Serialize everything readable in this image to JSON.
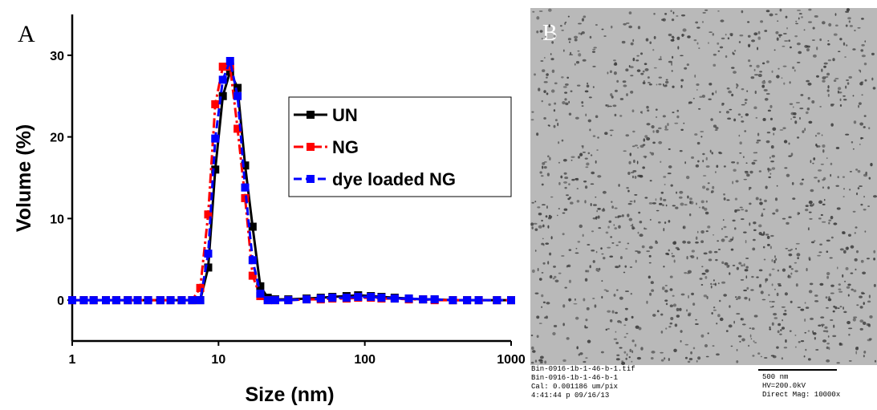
{
  "chart_data": {
    "type": "line",
    "panel_label": "A",
    "x_label": "Size (nm)",
    "y_label": "Volume (%)",
    "x": [
      1,
      1.2,
      1.4,
      1.7,
      2,
      2.4,
      2.8,
      3.3,
      4,
      4.7,
      5.6,
      6.6,
      7.5,
      8.5,
      9.5,
      10.7,
      12,
      13.5,
      15.2,
      17.1,
      19.3,
      21.7,
      24.4,
      30,
      40,
      50,
      60,
      75,
      90,
      110,
      130,
      160,
      200,
      250,
      300,
      400,
      500,
      600,
      800,
      1000
    ],
    "series": [
      {
        "name": "UN",
        "color": "#000000",
        "dash": "none",
        "values": [
          0,
          0,
          0,
          0,
          0,
          0,
          0,
          0,
          0,
          0,
          0,
          0,
          0,
          4,
          16,
          25,
          28,
          26,
          16.5,
          9,
          1.7,
          0.3,
          0.1,
          0.1,
          0.2,
          0.3,
          0.4,
          0.5,
          0.6,
          0.5,
          0.4,
          0.3,
          0.2,
          0.1,
          0.1,
          0,
          0,
          0,
          0,
          0
        ]
      },
      {
        "name": "NG",
        "color": "#ff0000",
        "dash": "12 4 3 4",
        "values": [
          0,
          0,
          0,
          0,
          0,
          0,
          0,
          0,
          0,
          0,
          0,
          0,
          1.5,
          10.5,
          24,
          28.6,
          28.6,
          21,
          12.5,
          3,
          0.5,
          0,
          0,
          0,
          0.1,
          0.1,
          0.2,
          0.2,
          0.3,
          0.3,
          0.2,
          0.2,
          0.1,
          0.1,
          0,
          0,
          0,
          0,
          0,
          0
        ]
      },
      {
        "name": "dye loaded NG",
        "color": "#0000ff",
        "dash": "10 5",
        "values": [
          0,
          0,
          0,
          0,
          0,
          0,
          0,
          0,
          0,
          0,
          0,
          0,
          0,
          5.7,
          19.8,
          27,
          29.3,
          25,
          13.8,
          4.9,
          0.8,
          0,
          0,
          0,
          0.1,
          0.2,
          0.3,
          0.3,
          0.4,
          0.4,
          0.3,
          0.2,
          0.2,
          0.1,
          0.1,
          0,
          0,
          0,
          0,
          0
        ]
      }
    ],
    "xlim": [
      1,
      1000
    ],
    "xticks": [
      1,
      10,
      100,
      1000
    ],
    "log_x": true,
    "ylim": [
      -5,
      35
    ],
    "yticks": [
      0,
      10,
      20,
      30
    ],
    "grid": false,
    "legend": "upper right"
  },
  "panel_b": {
    "label": "B",
    "info_lines": [
      "Bin-0916-1b-1-46-b-1.tif",
      "Bin-0916-1b-1-46-b-1",
      "Cal: 0.001186 um/pix",
      "4:41:44 p 09/16/13"
    ],
    "scale_bar": "500 nm",
    "right_lines": [
      "HV=200.0kV",
      "Direct Mag: 10000x"
    ]
  }
}
